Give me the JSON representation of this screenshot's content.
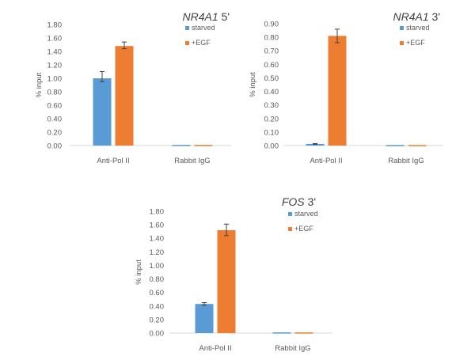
{
  "chart_data": [
    {
      "type": "bar",
      "title_italic": "NR4A1",
      "title_suffix": " 5'",
      "xlabel": "",
      "ylabel": "% input",
      "ylim": [
        0,
        1.8
      ],
      "yticks": [
        "0.00",
        "0.20",
        "0.40",
        "0.60",
        "0.80",
        "1.00",
        "1.20",
        "1.40",
        "1.60",
        "1.80"
      ],
      "categories": [
        "Anti-Pol II",
        "Rabbit IgG"
      ],
      "grid": false,
      "legend": "top-right",
      "series": [
        {
          "name": "starved",
          "color": "#5b9bd5",
          "values": [
            1.0,
            0.01
          ],
          "errors": [
            [
              0.05,
              0.1
            ],
            [
              0,
              0
            ]
          ]
        },
        {
          "name": "+EGF",
          "color": "#ed7d31",
          "values": [
            1.48,
            0.01
          ],
          "errors": [
            [
              0.04,
              0.06
            ],
            [
              0,
              0
            ]
          ]
        }
      ]
    },
    {
      "type": "bar",
      "title_italic": "NR4A1",
      "title_suffix": " 3'",
      "xlabel": "",
      "ylabel": "% input",
      "ylim": [
        0,
        0.9
      ],
      "yticks": [
        "0.00",
        "0.10",
        "0.20",
        "0.30",
        "0.40",
        "0.50",
        "0.60",
        "0.70",
        "0.80",
        "0.90"
      ],
      "categories": [
        "Anti-Pol II",
        "Rabbit IgG"
      ],
      "grid": false,
      "legend": "top-right",
      "series": [
        {
          "name": "starved",
          "color": "#5b9bd5",
          "values": [
            0.012,
            0.004
          ],
          "errors": [
            [
              0.003,
              0.003
            ],
            [
              0,
              0
            ]
          ]
        },
        {
          "name": "+EGF",
          "color": "#ed7d31",
          "values": [
            0.81,
            0.004
          ],
          "errors": [
            [
              0.05,
              0.05
            ],
            [
              0,
              0
            ]
          ]
        }
      ]
    },
    {
      "type": "bar",
      "title_italic": "FOS",
      "title_suffix": " 3'",
      "xlabel": "",
      "ylabel": "% input",
      "ylim": [
        0,
        1.8
      ],
      "yticks": [
        "0.00",
        "0.20",
        "0.40",
        "0.60",
        "0.80",
        "1.00",
        "1.20",
        "1.40",
        "1.60",
        "1.80"
      ],
      "categories": [
        "Anti-Pol II",
        "Rabbit IgG"
      ],
      "grid": false,
      "legend": "top-right",
      "series": [
        {
          "name": "starved",
          "color": "#5b9bd5",
          "values": [
            0.43,
            0.01
          ],
          "errors": [
            [
              0.02,
              0.02
            ],
            [
              0,
              0
            ]
          ]
        },
        {
          "name": "+EGF",
          "color": "#ed7d31",
          "values": [
            1.52,
            0.01
          ],
          "errors": [
            [
              0.08,
              0.09
            ],
            [
              0,
              0
            ]
          ]
        }
      ]
    }
  ]
}
